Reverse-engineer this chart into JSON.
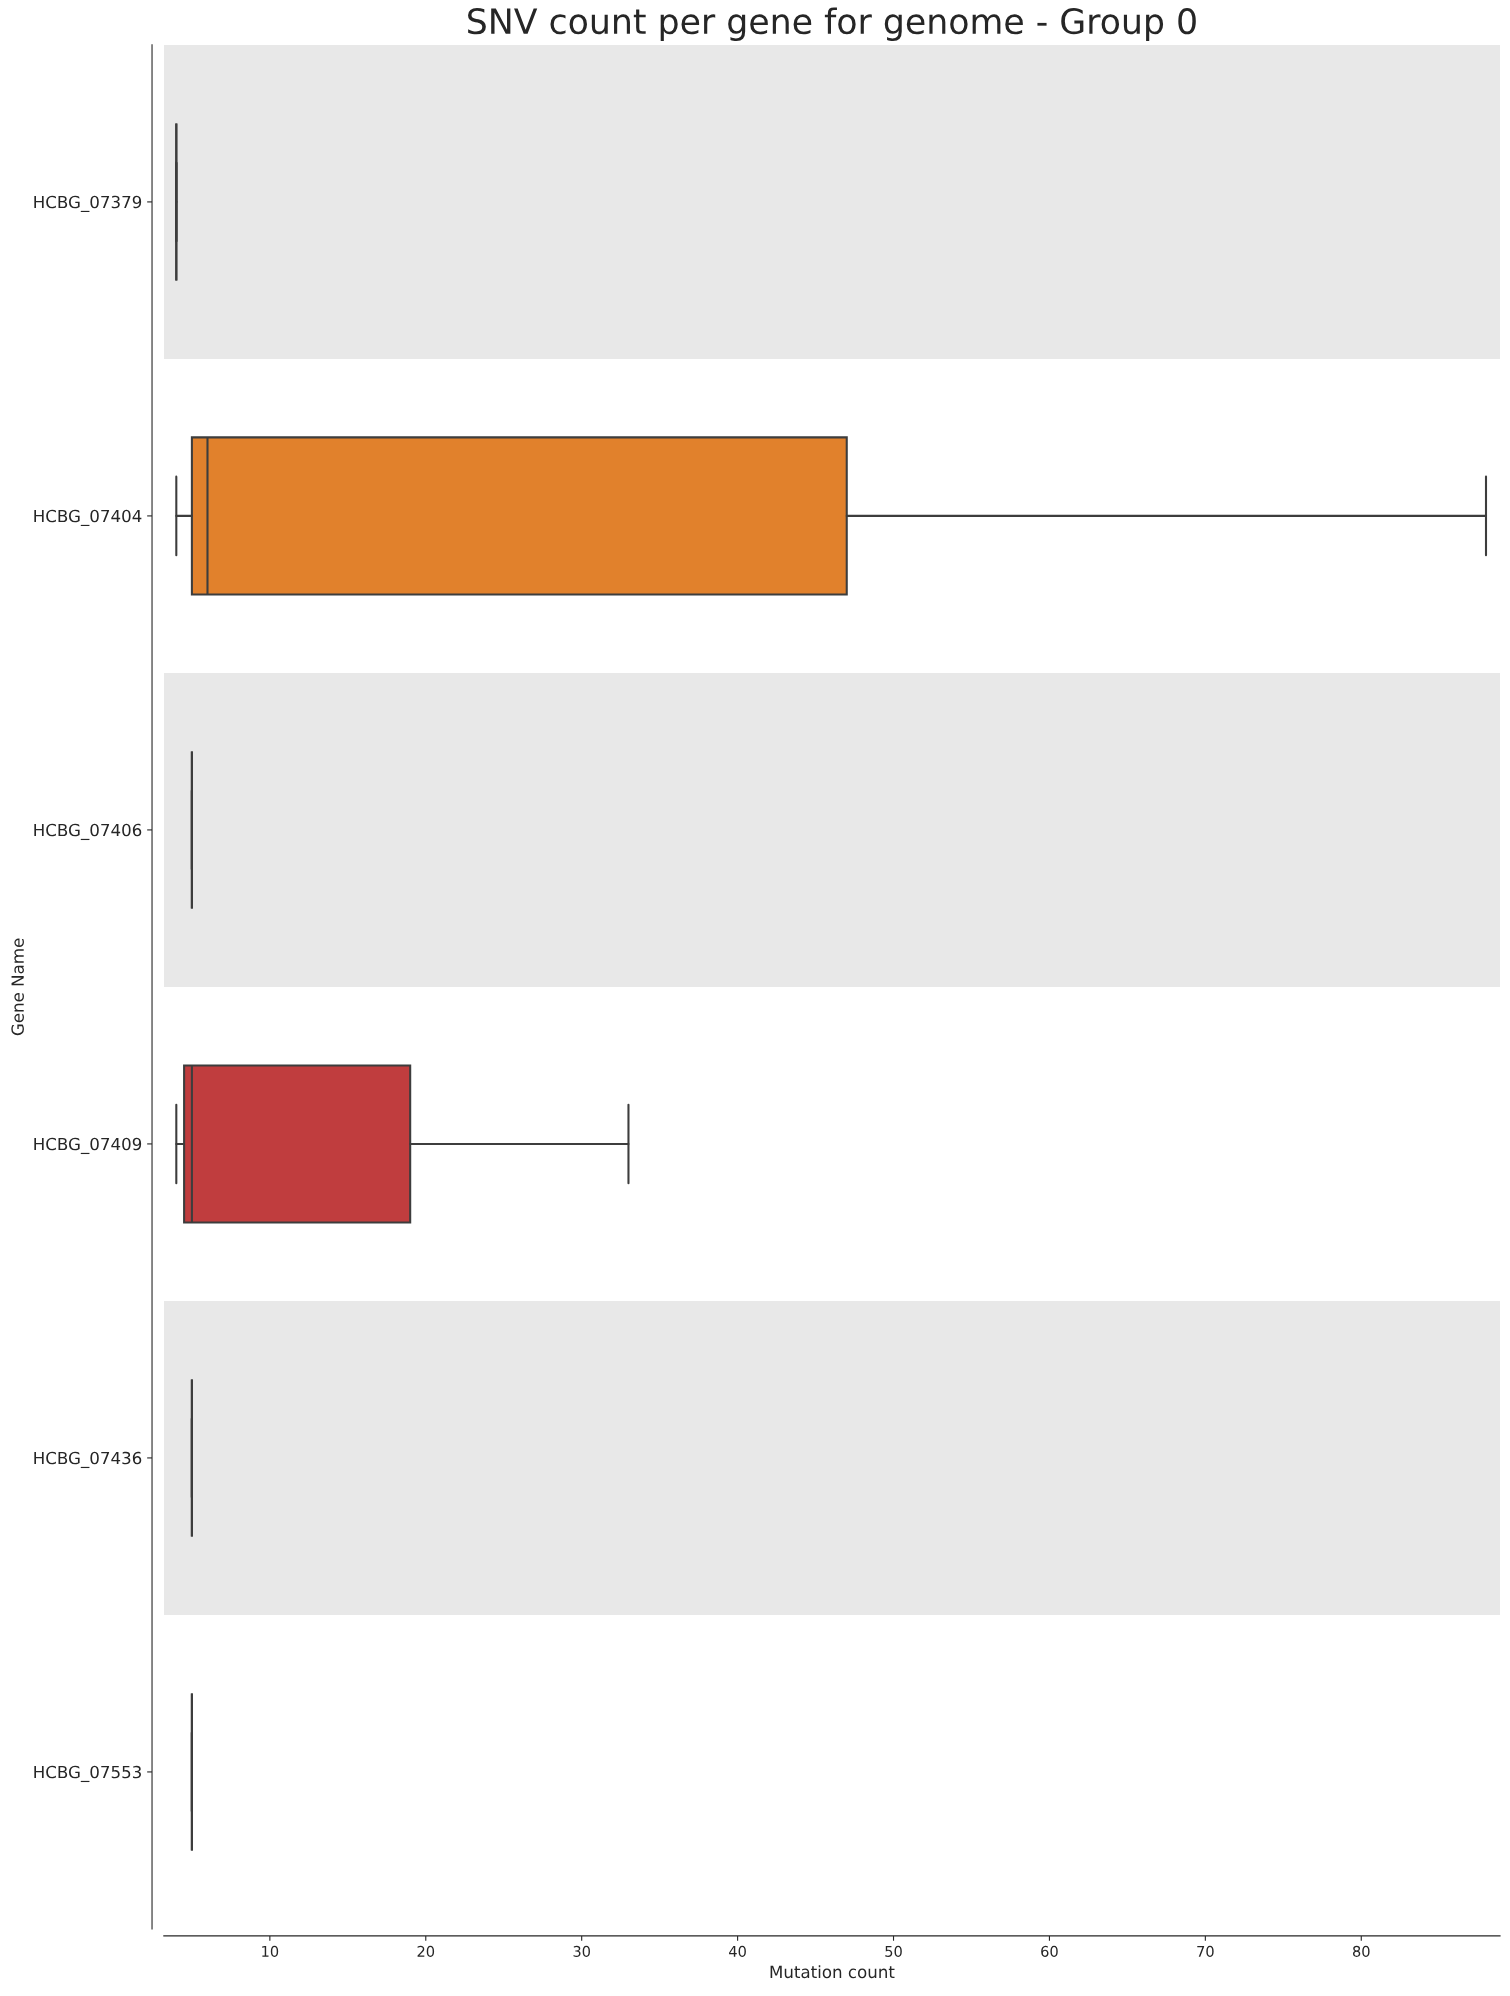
{
  "chart_data": {
    "type": "box",
    "title": "SNV count per gene for genome - Group 0",
    "xlabel": "Mutation count",
    "ylabel": "Gene Name",
    "orientation": "horizontal",
    "categories": [
      "HCBG_07379",
      "HCBG_07404",
      "HCBG_07406",
      "HCBG_07409",
      "HCBG_07436",
      "HCBG_07553"
    ],
    "boxes": [
      {
        "low": 4,
        "q1": 4,
        "median": 4,
        "q3": 4,
        "high": 4
      },
      {
        "low": 4,
        "q1": 5,
        "median": 6,
        "q3": 47,
        "high": 88
      },
      {
        "low": 5,
        "q1": 5,
        "median": 5,
        "q3": 5,
        "high": 5
      },
      {
        "low": 4,
        "q1": 4.5,
        "median": 5,
        "q3": 19,
        "high": 33
      },
      {
        "low": 5,
        "q1": 5,
        "median": 5,
        "q3": 5,
        "high": 5
      },
      {
        "low": 5,
        "q1": 5,
        "median": 5,
        "q3": 5,
        "high": 5
      }
    ],
    "colors": [
      null,
      "#e1812c",
      null,
      "#c03d3e",
      null,
      null
    ],
    "xlim": [
      3.2,
      88.9
    ],
    "xticks": [
      10,
      20,
      30,
      40,
      50,
      60,
      70,
      80
    ],
    "bands": [
      {
        "axis": "y",
        "from": "HCBG_07379",
        "to": "HCBG_07379",
        "color": "#e8e8e8"
      },
      {
        "axis": "y",
        "from": "HCBG_07406",
        "to": "HCBG_07406",
        "color": "#e8e8e8"
      },
      {
        "axis": "y",
        "from": "HCBG_07436",
        "to": "HCBG_07436",
        "color": "#e8e8e8"
      }
    ]
  }
}
